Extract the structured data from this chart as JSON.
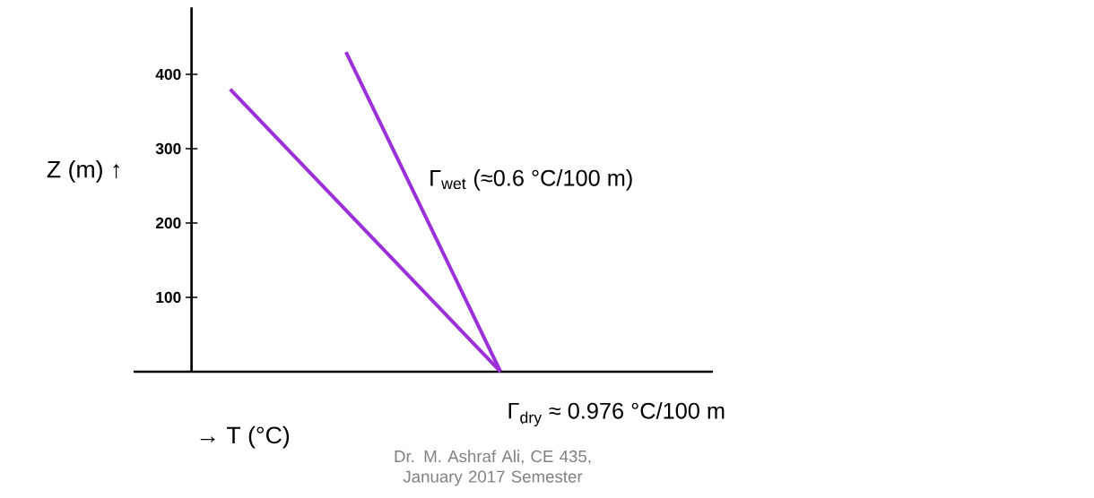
{
  "chart_data": {
    "type": "line",
    "xlabel": "→ T (°C)",
    "ylabel": "Z (m) ↑",
    "annotations": [
      "Dr. M. Ashraf Ali, CE 435, January 2017 Semester"
    ],
    "categories": [
      null,
      null,
      null,
      null,
      null,
      null,
      null,
      null,
      null,
      null,
      null,
      null,
      null,
      null,
      null
    ],
    "ylim": [
      0,
      490
    ],
    "yticks": [
      100,
      200,
      300,
      400
    ],
    "tick_labels": "y",
    "series": [
      {
        "name": "Γ$_{wet}$ (≈0.6 °C/100 m)",
        "color": "#9b30d9",
        "values": [
          null,
          null,
          null,
          null,
          null,
          430,
          null,
          null,
          null,
          0,
          null,
          null,
          null,
          null,
          null
        ]
      },
      {
        "name": "Γ$_{dry}$ ≈ 0.976 °C/100 m",
        "color": "#9b30d9",
        "values": [
          null,
          null,
          380,
          null,
          null,
          null,
          null,
          null,
          null,
          0,
          null,
          null,
          null,
          null,
          null
        ]
      }
    ]
  }
}
